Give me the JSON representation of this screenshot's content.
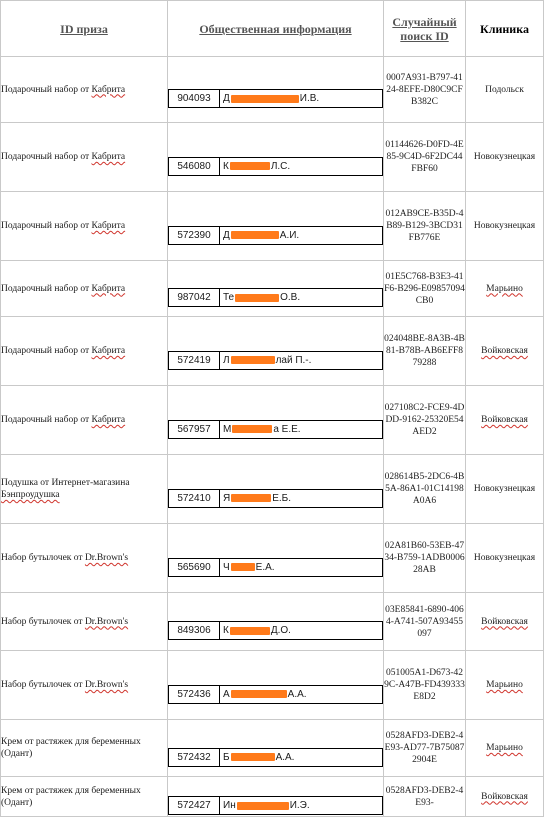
{
  "headers": {
    "prize_id": "ID приза",
    "public_info": "Общественная информация",
    "random_search_id": "Случайный поиск ID",
    "clinic": "Клиника"
  },
  "redaction_color": "#ff7a1a",
  "rows": [
    {
      "prize": "Подарочный набор от Кабрита",
      "wavy": "Кабрита",
      "id": "904093",
      "name_prefix": "Д",
      "name_suffix": "И.В.",
      "search_id": "0007A931-B797-4124-8EFE-D80C9CFB382C",
      "clinic": "Подольск",
      "clinic_wavy": false
    },
    {
      "prize": "Подарочный набор от Кабрита",
      "wavy": "Кабрита",
      "id": "546080",
      "name_prefix": "К",
      "name_suffix": "Л.С.",
      "search_id": "01144626-D0FD-4E85-9C4D-6F2DC44FBF60",
      "clinic": "Новокузнецкая",
      "clinic_wavy": false
    },
    {
      "prize": "Подарочный набор от Кабрита",
      "wavy": "Кабрита",
      "id": "572390",
      "name_prefix": "Д",
      "name_suffix": "А.И.",
      "search_id": "012AB9CE-B35D-4B89-B129-3BCD31FB776E",
      "clinic": "Новокузнецкая",
      "clinic_wavy": false
    },
    {
      "prize": "Подарочный набор от Кабрита",
      "wavy": "Кабрита",
      "id": "987042",
      "name_prefix": "Те",
      "name_suffix": "О.В.",
      "search_id": "01E5C768-B3E3-41F6-B296-E09857094CB0",
      "clinic": "Марьино",
      "clinic_wavy": true
    },
    {
      "prize": "Подарочный набор от Кабрита",
      "wavy": "Кабрита",
      "id": "572419",
      "name_prefix": "Л",
      "name_suffix": "лай П.-.",
      "search_id": "024048BE-8A3B-4B81-B78B-AB6EFF879288",
      "clinic": "Войковская",
      "clinic_wavy": true
    },
    {
      "prize": "Подарочный набор от Кабрита",
      "wavy": "Кабрита",
      "id": "567957",
      "name_prefix": "М",
      "name_suffix": "а Е.Е.",
      "search_id": "027108C2-FCE9-4DDD-9162-25320E54AED2",
      "clinic": "Войковская",
      "clinic_wavy": true
    },
    {
      "prize": "Подушка от Интернет-магазина Бэнпроудушка",
      "wavy": "Бэнпроудушка",
      "id": "572410",
      "name_prefix": "Я",
      "name_suffix": "Е.Б.",
      "search_id": "028614B5-2DC6-4B5A-86A1-01C14198A0A6",
      "clinic": "Новокузнецкая",
      "clinic_wavy": false
    },
    {
      "prize": "Набор бутылочек от Dr.Brown's",
      "wavy": "Dr.Brown's",
      "id": "565690",
      "name_prefix": "Ч",
      "name_suffix": "Е.А.",
      "search_id": "02A81B60-53EB-4734-B759-1ADB000628AB",
      "clinic": "Новокузнецкая",
      "clinic_wavy": false
    },
    {
      "prize": "Набор бутылочек от Dr.Brown's",
      "wavy": "Dr.Brown's",
      "id": "849306",
      "name_prefix": "К",
      "name_suffix": "Д.О.",
      "search_id": "03E85841-6890-4064-A741-507A93455097",
      "clinic": "Войковская",
      "clinic_wavy": true
    },
    {
      "prize": "Набор бутылочек от Dr.Brown's",
      "wavy": "Dr.Brown's",
      "id": "572436",
      "name_prefix": "А",
      "name_suffix": "А.А.",
      "search_id": "051005A1-D673-429C-A47B-FD439333E8D2",
      "clinic": "Марьино",
      "clinic_wavy": true
    },
    {
      "prize": "Крем от растяжек для беременных (Одант)",
      "wavy": "",
      "id": "572432",
      "name_prefix": "Б",
      "name_suffix": "А.А.",
      "search_id": "0528AFD3-DEB2-4E93-AD77-7B750872904E",
      "clinic": "Марьино",
      "clinic_wavy": true
    },
    {
      "prize": "Крем от растяжек для беременных (Одант)",
      "wavy": "",
      "id": "572427",
      "name_prefix": "Ин",
      "name_suffix": "И.Э.",
      "search_id": "0528AFD3-DEB2-4E93-",
      "clinic": "Войковская",
      "clinic_wavy": true
    }
  ]
}
